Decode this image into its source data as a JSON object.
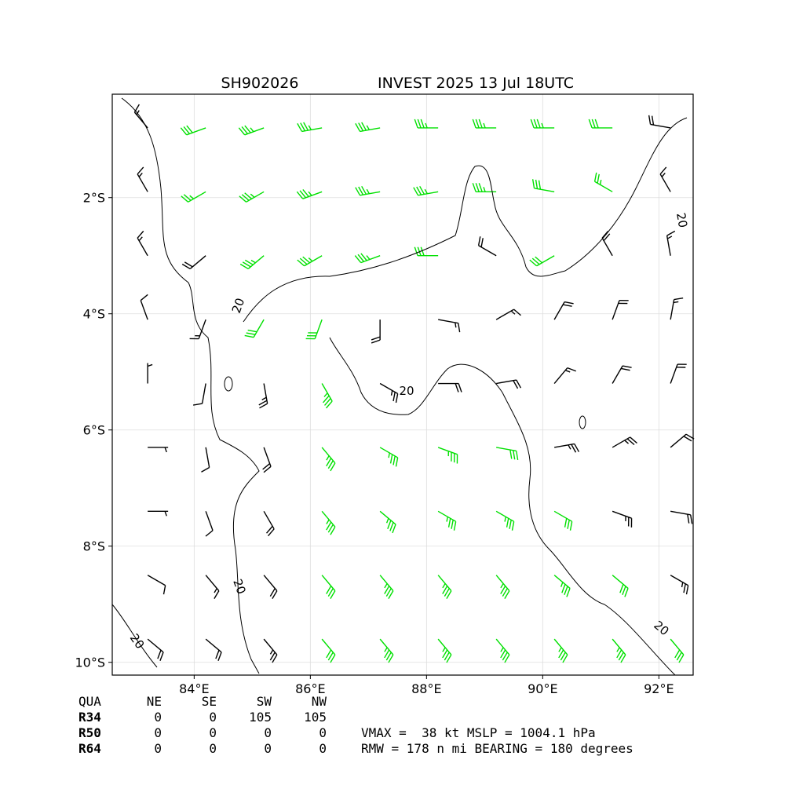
{
  "title_left": "SH902026",
  "title_right": "INVEST 2025 13 Jul 18UTC",
  "map": {
    "xlim": [
      82.59,
      92.59
    ],
    "ylim": [
      -10.22,
      -0.22
    ],
    "xticks": [
      {
        "value": 84,
        "label": "84°E"
      },
      {
        "value": 86,
        "label": "86°E"
      },
      {
        "value": 88,
        "label": "88°E"
      },
      {
        "value": 90,
        "label": "90°E"
      },
      {
        "value": 92,
        "label": "92°E"
      }
    ],
    "yticks": [
      {
        "value": -2,
        "label": "2°S"
      },
      {
        "value": -4,
        "label": "4°S"
      },
      {
        "value": -6,
        "label": "6°S"
      },
      {
        "value": -8,
        "label": "8°S"
      },
      {
        "value": -10,
        "label": "10°S"
      }
    ],
    "grid": true,
    "contour_labels": [
      "20",
      "20",
      "20",
      "20",
      "20",
      "20"
    ]
  },
  "wind": {
    "lons": [
      83.2,
      84.2,
      85.2,
      86.2,
      87.2,
      88.2,
      89.2,
      90.2,
      91.2,
      92.2
    ],
    "lats": [
      -0.8,
      -1.9,
      -3.0,
      -4.1,
      -5.2,
      -6.3,
      -7.4,
      -8.5,
      -9.6
    ],
    "palette": {
      "G": "#00e000",
      "K": "#000000"
    },
    "colors": [
      "KGGGGGGGGK",
      "KGGGGGGGGK",
      "KKGGGGKGKK",
      "KKGGKKKKKK",
      "KKKGKKKKKK",
      "KKKGGGGKKK",
      "KKKGGGGGKK",
      "KKKGGGGGGK",
      "KKKGGGGGGG"
    ],
    "speed": [
      [
        15,
        30,
        35,
        35,
        35,
        35,
        35,
        35,
        30,
        20
      ],
      [
        15,
        25,
        35,
        35,
        35,
        35,
        35,
        30,
        25,
        15
      ],
      [
        15,
        20,
        35,
        35,
        35,
        30,
        20,
        30,
        20,
        15
      ],
      [
        10,
        15,
        30,
        30,
        20,
        15,
        15,
        20,
        20,
        15
      ],
      [
        5,
        10,
        25,
        35,
        25,
        20,
        20,
        15,
        20,
        20
      ],
      [
        5,
        10,
        20,
        35,
        35,
        35,
        30,
        25,
        25,
        20
      ],
      [
        5,
        10,
        20,
        35,
        35,
        35,
        35,
        30,
        25,
        20
      ],
      [
        10,
        15,
        20,
        30,
        35,
        35,
        35,
        35,
        30,
        25
      ],
      [
        20,
        20,
        25,
        30,
        35,
        35,
        35,
        35,
        35,
        30
      ]
    ],
    "direction": [
      [
        320,
        250,
        250,
        260,
        260,
        270,
        270,
        270,
        270,
        280
      ],
      [
        330,
        240,
        240,
        250,
        260,
        260,
        270,
        280,
        300,
        330
      ],
      [
        330,
        230,
        230,
        240,
        250,
        270,
        300,
        240,
        330,
        350
      ],
      [
        340,
        200,
        210,
        200,
        180,
        100,
        60,
        30,
        20,
        10
      ],
      [
        0,
        190,
        170,
        150,
        120,
        90,
        80,
        40,
        30,
        20
      ],
      [
        90,
        170,
        160,
        140,
        120,
        110,
        100,
        80,
        60,
        50
      ],
      [
        90,
        160,
        150,
        140,
        130,
        120,
        120,
        120,
        110,
        100
      ],
      [
        120,
        140,
        140,
        140,
        140,
        140,
        140,
        130,
        130,
        120
      ],
      [
        130,
        130,
        140,
        140,
        140,
        140,
        140,
        140,
        140,
        140
      ]
    ]
  },
  "table": {
    "header": [
      "QUA",
      "NE",
      "SE",
      "SW",
      "NW"
    ],
    "rows": [
      [
        "R34",
        0,
        0,
        105,
        105
      ],
      [
        "R50",
        0,
        0,
        0,
        0
      ],
      [
        "R64",
        0,
        0,
        0,
        0
      ]
    ]
  },
  "summary": [
    "VMAX =  38 kt MSLP = 1004.1 hPa",
    "RMW = 178 n mi BEARING = 180 degrees"
  ]
}
